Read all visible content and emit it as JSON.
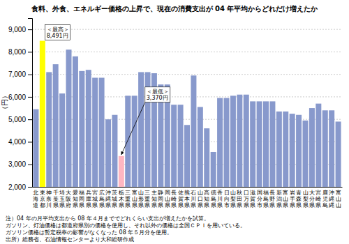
{
  "chart_data": {
    "type": "bar",
    "title": "食料、外食、エネルギー価格の上昇で、現在の消費支出が 04 年平均からどれだけ増えたか",
    "y_label": "（円）",
    "categories": [
      "北海道",
      "東京都",
      "神奈川",
      "千葉県",
      "埼玉県",
      "大阪府",
      "愛知県",
      "福岡県",
      "兵庫県",
      "宮城県",
      "広島県",
      "沖縄県",
      "茨城県",
      "栃木県",
      "三重県",
      "富山県",
      "山形県",
      "三重県",
      "主知県",
      "静岡県",
      "岡山県",
      "長崎県",
      "佐賀県",
      "熊本県",
      "石川県",
      "山口県",
      "高知県",
      "徳島県",
      "香川県",
      "日向市",
      "山梨県",
      "秋田県",
      "口万県",
      "滋賀県",
      "国分市",
      "福島県",
      "長野県",
      "新潟県",
      "富山県",
      "岩手県",
      "青森県",
      "山梨県",
      "大分県",
      "宮崎県",
      "鹿児島",
      "沖縄縄",
      "富山山"
    ],
    "values": [
      5450,
      8491,
      7100,
      7450,
      6150,
      8100,
      7800,
      7150,
      7200,
      6850,
      6850,
      5000,
      5200,
      3370,
      6050,
      6050,
      7100,
      7100,
      7050,
      6550,
      6550,
      5650,
      5650,
      4750,
      6950,
      5550,
      4600,
      3550,
      5950,
      5950,
      6050,
      6100,
      6100,
      5800,
      5800,
      5800,
      5800,
      5350,
      5350,
      5250,
      5200,
      4950,
      5500,
      5700,
      5400,
      5400,
      4900
    ],
    "colors": [
      "#8899CC",
      "#FFFF00",
      "#8899CC",
      "#8899CC",
      "#8899CC",
      "#8899CC",
      "#8899CC",
      "#8899CC",
      "#8899CC",
      "#8899CC",
      "#8899CC",
      "#8899CC",
      "#8899CC",
      "#FFB6C1",
      "#8899CC",
      "#8899CC",
      "#8899CC",
      "#8899CC",
      "#8899CC",
      "#8899CC",
      "#8899CC",
      "#8899CC",
      "#8899CC",
      "#8899CC",
      "#8899CC",
      "#8899CC",
      "#8899CC",
      "#8899CC",
      "#8899CC",
      "#8899CC",
      "#8899CC",
      "#8899CC",
      "#8899CC",
      "#8899CC",
      "#8899CC",
      "#8899CC",
      "#8899CC",
      "#8899CC",
      "#8899CC",
      "#8899CC",
      "#8899CC",
      "#8899CC",
      "#8899CC",
      "#8899CC",
      "#8899CC",
      "#8899CC",
      "#8899CC"
    ],
    "ylim": [
      2000,
      9500
    ],
    "yticks": [
      {
        "value": 2000,
        "label": "2,000"
      },
      {
        "value": 3000,
        "label": "3,000"
      },
      {
        "value": 4000,
        "label": "4,000"
      },
      {
        "value": 5000,
        "label": "5,000"
      },
      {
        "value": 6000,
        "label": "6,000"
      },
      {
        "value": 7000,
        "label": "7,000"
      },
      {
        "value": 8000,
        "label": "8,000"
      },
      {
        "value": 9000,
        "label": "9,000"
      }
    ],
    "grid": true,
    "annotations": [
      {
        "lines": [
          "＜最高＞",
          "8,491円"
        ],
        "index": 1,
        "value": 8491
      },
      {
        "lines": [
          "＜最低＞",
          "3,370円"
        ],
        "index": 13,
        "value": 3370
      }
    ],
    "notes": [
      "注）04 年の月平均支出から 08 年４月まででどれくらい支出が増えたかを試算。",
      "ガソリン、灯油価格は都道府県別の価格を使用し、それ以外の価格は全国ＣＰＩを用いている。",
      "ガソリン価格は暫定税率の影響がなくなった 08 年５月分を使用。",
      "出所）総務省、石油情報センターより大和総研作成"
    ]
  }
}
